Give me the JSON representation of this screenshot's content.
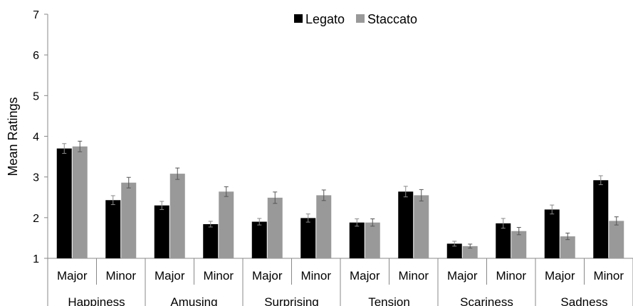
{
  "chart_data": {
    "type": "bar",
    "title": "",
    "xlabel": "",
    "ylabel": "Mean Ratings",
    "ylim": [
      1,
      7
    ],
    "yticks": [
      "1",
      "2",
      "3",
      "4",
      "5",
      "6",
      "7"
    ],
    "grid": false,
    "legend_position": "top",
    "groups": [
      "Happiness",
      "Amusing",
      "Surprising",
      "Tension",
      "Scariness",
      "Sadness"
    ],
    "categories": [
      "Major",
      "Minor",
      "Major",
      "Minor",
      "Major",
      "Minor",
      "Major",
      "Minor",
      "Major",
      "Minor",
      "Major",
      "Minor"
    ],
    "series": [
      {
        "name": "Legato",
        "color": "#000000",
        "values": [
          3.7,
          2.43,
          2.3,
          1.84,
          1.9,
          1.99,
          1.88,
          2.64,
          1.36,
          1.86,
          2.2,
          2.92
        ],
        "errors": [
          0.12,
          0.11,
          0.1,
          0.07,
          0.08,
          0.1,
          0.09,
          0.13,
          0.06,
          0.12,
          0.11,
          0.11
        ]
      },
      {
        "name": "Staccato",
        "color": "#999999",
        "values": [
          3.75,
          2.86,
          3.08,
          2.64,
          2.49,
          2.55,
          1.88,
          2.55,
          1.3,
          1.67,
          1.54,
          1.92
        ],
        "errors": [
          0.13,
          0.13,
          0.14,
          0.12,
          0.14,
          0.13,
          0.09,
          0.14,
          0.05,
          0.09,
          0.08,
          0.1
        ]
      }
    ]
  }
}
